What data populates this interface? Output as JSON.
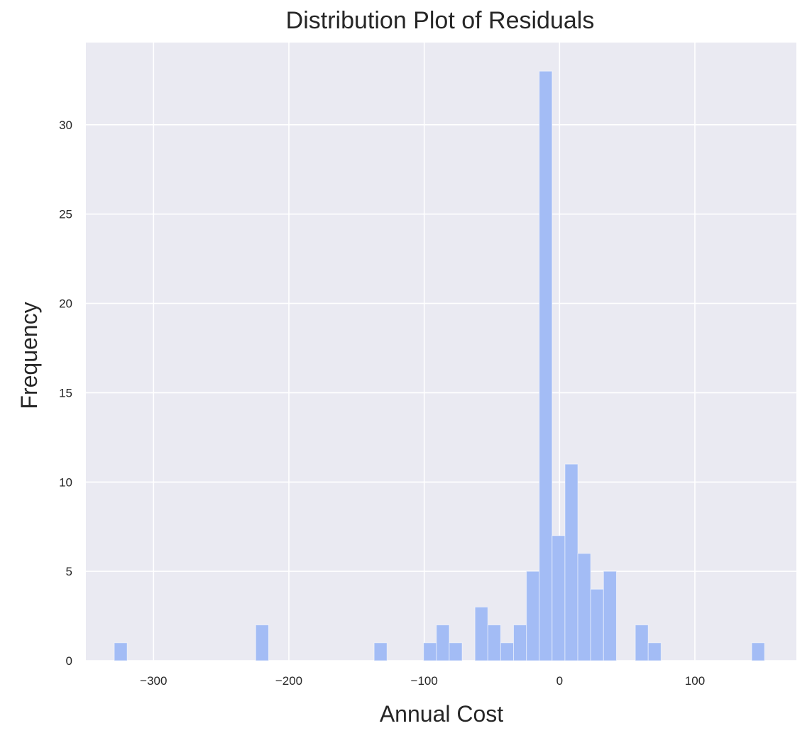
{
  "chart_data": {
    "type": "bar",
    "title": "Distribution Plot of Residuals",
    "xlabel": "Annual Cost",
    "ylabel": "Frequency",
    "xlim": [
      -350,
      175
    ],
    "ylim": [
      0,
      34.6
    ],
    "xticks": [
      -300,
      -200,
      -100,
      0,
      100
    ],
    "xtick_labels": [
      "−300",
      "−200",
      "−100",
      "0",
      "100"
    ],
    "yticks": [
      0,
      5,
      10,
      15,
      20,
      25,
      30
    ],
    "ytick_labels": [
      "0",
      "5",
      "10",
      "15",
      "20",
      "25",
      "30"
    ],
    "grid": true,
    "legend": false,
    "bin_width": 9.5,
    "series": [
      {
        "bins": [
          {
            "x0": -329,
            "x1": -319.5,
            "count": 1
          },
          {
            "x0": -224.5,
            "x1": -215,
            "count": 2
          },
          {
            "x0": -137,
            "x1": -127.5,
            "count": 1
          },
          {
            "x0": -100.5,
            "x1": -91,
            "count": 1
          },
          {
            "x0": -91,
            "x1": -81.5,
            "count": 2
          },
          {
            "x0": -81.5,
            "x1": -72,
            "count": 1
          },
          {
            "x0": -62.5,
            "x1": -53,
            "count": 3
          },
          {
            "x0": -53,
            "x1": -43.5,
            "count": 2
          },
          {
            "x0": -43.5,
            "x1": -34,
            "count": 1
          },
          {
            "x0": -34,
            "x1": -24.5,
            "count": 2
          },
          {
            "x0": -24.5,
            "x1": -15,
            "count": 5
          },
          {
            "x0": -15,
            "x1": -5.5,
            "count": 33
          },
          {
            "x0": -5.5,
            "x1": 4,
            "count": 7
          },
          {
            "x0": 4,
            "x1": 13.5,
            "count": 11
          },
          {
            "x0": 13.5,
            "x1": 23,
            "count": 6
          },
          {
            "x0": 23,
            "x1": 32.5,
            "count": 4
          },
          {
            "x0": 32.5,
            "x1": 42,
            "count": 5
          },
          {
            "x0": 56,
            "x1": 65.5,
            "count": 2
          },
          {
            "x0": 65.5,
            "x1": 75,
            "count": 1
          },
          {
            "x0": 142,
            "x1": 151.5,
            "count": 1
          }
        ]
      }
    ],
    "colors": {
      "background": "#eaeaf2",
      "grid": "#ffffff",
      "bar": "#a3bcf5"
    }
  }
}
